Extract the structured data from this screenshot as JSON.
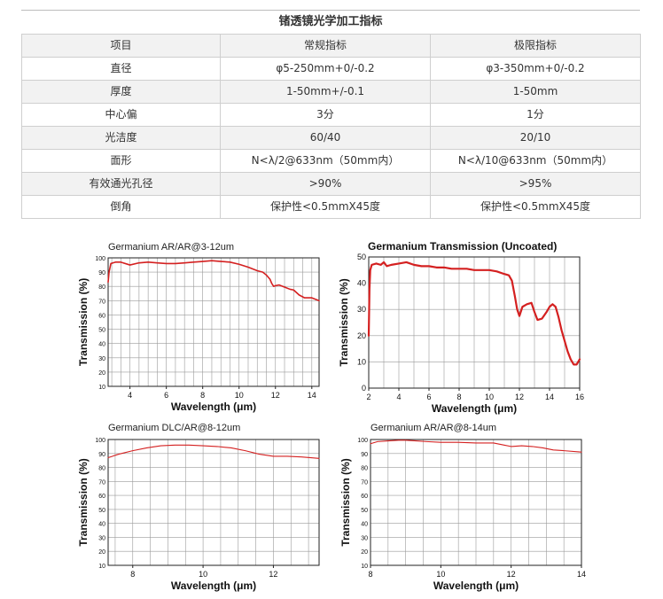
{
  "table": {
    "title": "锗透镜光学加工指标",
    "headers": [
      "项目",
      "常规指标",
      "极限指标"
    ],
    "rows": [
      [
        "直径",
        "φ5-250mm+0/-0.2",
        "φ3-350mm+0/-0.2"
      ],
      [
        "厚度",
        "1-50mm+/-0.1",
        "1-50mm"
      ],
      [
        "中心偏",
        "3分",
        "1分"
      ],
      [
        "光洁度",
        "60/40",
        "20/10"
      ],
      [
        "面形",
        "N<λ/2@633nm（50mm内）",
        "N<λ/10@633nm（50mm内）"
      ],
      [
        "有效通光孔径",
        ">90%",
        ">95%"
      ],
      [
        "倒角",
        "保护性<0.5mmX45度",
        "保护性<0.5mmX45度"
      ]
    ]
  },
  "colors": {
    "curve": "#d42020",
    "grid": "#9a9a9a",
    "axis": "#222222"
  },
  "chart_data": [
    {
      "type": "line",
      "title": "Germanium AR/AR@3-12um",
      "xlabel": "Wavelength (μm)",
      "ylabel": "Transmission (%)",
      "xlim": [
        2.8,
        14.4
      ],
      "ylim": [
        10,
        100
      ],
      "xticks": [
        4,
        6,
        8,
        10,
        12,
        14
      ],
      "yticks": [
        10,
        20,
        30,
        40,
        50,
        60,
        70,
        80,
        90,
        100
      ],
      "grid": true,
      "series": [
        {
          "name": "Germanium AR/AR@3-12um",
          "x": [
            2.8,
            2.85,
            2.95,
            3.2,
            3.5,
            4.0,
            4.5,
            5.0,
            5.5,
            6.0,
            6.5,
            7.0,
            7.5,
            8.0,
            8.5,
            9.0,
            9.5,
            10.0,
            10.5,
            11.0,
            11.3,
            11.5,
            11.7,
            11.8,
            11.9,
            12.0,
            12.2,
            12.5,
            12.8,
            13.0,
            13.3,
            13.6,
            14.0,
            14.4
          ],
          "y": [
            83,
            90,
            96,
            97,
            97,
            95,
            96.5,
            97,
            96.5,
            96,
            96,
            96.5,
            97,
            97.5,
            98,
            97.5,
            97,
            95.5,
            93.5,
            91,
            90,
            88,
            85,
            82,
            80,
            80.5,
            81,
            79.5,
            78,
            77.5,
            74,
            72,
            72,
            70
          ]
        }
      ]
    },
    {
      "type": "line",
      "title": "Germanium Transmission (Uncoated)",
      "xlabel": "Wavelength (μm)",
      "ylabel": "Transmission (%)",
      "xlim": [
        2,
        16
      ],
      "ylim": [
        0,
        50
      ],
      "xticks": [
        2,
        4,
        6,
        8,
        10,
        12,
        14,
        16
      ],
      "yticks": [
        0,
        10,
        20,
        30,
        40,
        50
      ],
      "grid": true,
      "series": [
        {
          "name": "Uncoated",
          "x": [
            2.0,
            2.05,
            2.1,
            2.2,
            2.5,
            2.8,
            3.0,
            3.2,
            3.5,
            4.0,
            4.5,
            5.0,
            5.5,
            6.0,
            6.5,
            7.0,
            7.5,
            8.0,
            8.5,
            9.0,
            9.5,
            10.0,
            10.5,
            11.0,
            11.3,
            11.5,
            11.7,
            11.85,
            12.0,
            12.2,
            12.5,
            12.8,
            13.0,
            13.2,
            13.5,
            13.8,
            14.0,
            14.2,
            14.4,
            14.6,
            14.8,
            15.0,
            15.2,
            15.4,
            15.6,
            15.8,
            16.0
          ],
          "y": [
            20,
            38,
            45,
            47,
            47.5,
            47,
            48,
            46.5,
            47,
            47.5,
            48,
            47,
            46.5,
            46.5,
            46,
            46,
            45.5,
            45.5,
            45.5,
            45,
            45,
            45,
            44.5,
            43.5,
            43,
            41,
            35,
            30,
            27.5,
            31,
            32,
            32.5,
            29,
            26,
            26.5,
            29,
            31,
            32,
            31,
            27,
            22,
            18,
            14,
            11,
            9,
            9,
            11
          ]
        }
      ]
    },
    {
      "type": "line",
      "title": "Germanium DLC/AR@8-12um",
      "xlabel": "Wavelength (μm)",
      "ylabel": "Transmission (%)",
      "xlim": [
        7.3,
        13.3
      ],
      "ylim": [
        10,
        100
      ],
      "xticks": [
        8,
        10,
        12
      ],
      "yticks": [
        10,
        20,
        30,
        40,
        50,
        60,
        70,
        80,
        90,
        100
      ],
      "grid": true,
      "series": [
        {
          "name": "DLC/AR",
          "x": [
            7.3,
            7.6,
            8.0,
            8.4,
            8.8,
            9.2,
            9.6,
            10.0,
            10.4,
            10.8,
            11.2,
            11.6,
            12.0,
            12.4,
            12.8,
            13.3
          ],
          "y": [
            87,
            89.5,
            92,
            94,
            95.5,
            96,
            96,
            95.5,
            95,
            94,
            92,
            89.5,
            88,
            88,
            87.5,
            86.5
          ]
        }
      ]
    },
    {
      "type": "line",
      "title": "Germanium AR/AR@8-14um",
      "xlabel": "Wavelength (μm)",
      "ylabel": "Transmission (%)",
      "xlim": [
        8,
        14
      ],
      "ylim": [
        10,
        100
      ],
      "xticks": [
        8,
        10,
        12,
        14
      ],
      "yticks": [
        10,
        20,
        30,
        40,
        50,
        60,
        70,
        80,
        90,
        100
      ],
      "grid": true,
      "series": [
        {
          "name": "AR/AR 8-14",
          "x": [
            8.0,
            8.2,
            8.5,
            8.8,
            9.0,
            9.3,
            9.6,
            10.0,
            10.5,
            11.0,
            11.5,
            11.8,
            12.0,
            12.3,
            12.6,
            12.9,
            13.2,
            13.5,
            14.0
          ],
          "y": [
            97,
            98.5,
            99,
            99.5,
            99.5,
            99,
            98.5,
            98,
            98,
            97.5,
            97.5,
            96,
            95,
            95.5,
            95,
            94,
            92.5,
            92,
            91
          ]
        }
      ]
    }
  ]
}
